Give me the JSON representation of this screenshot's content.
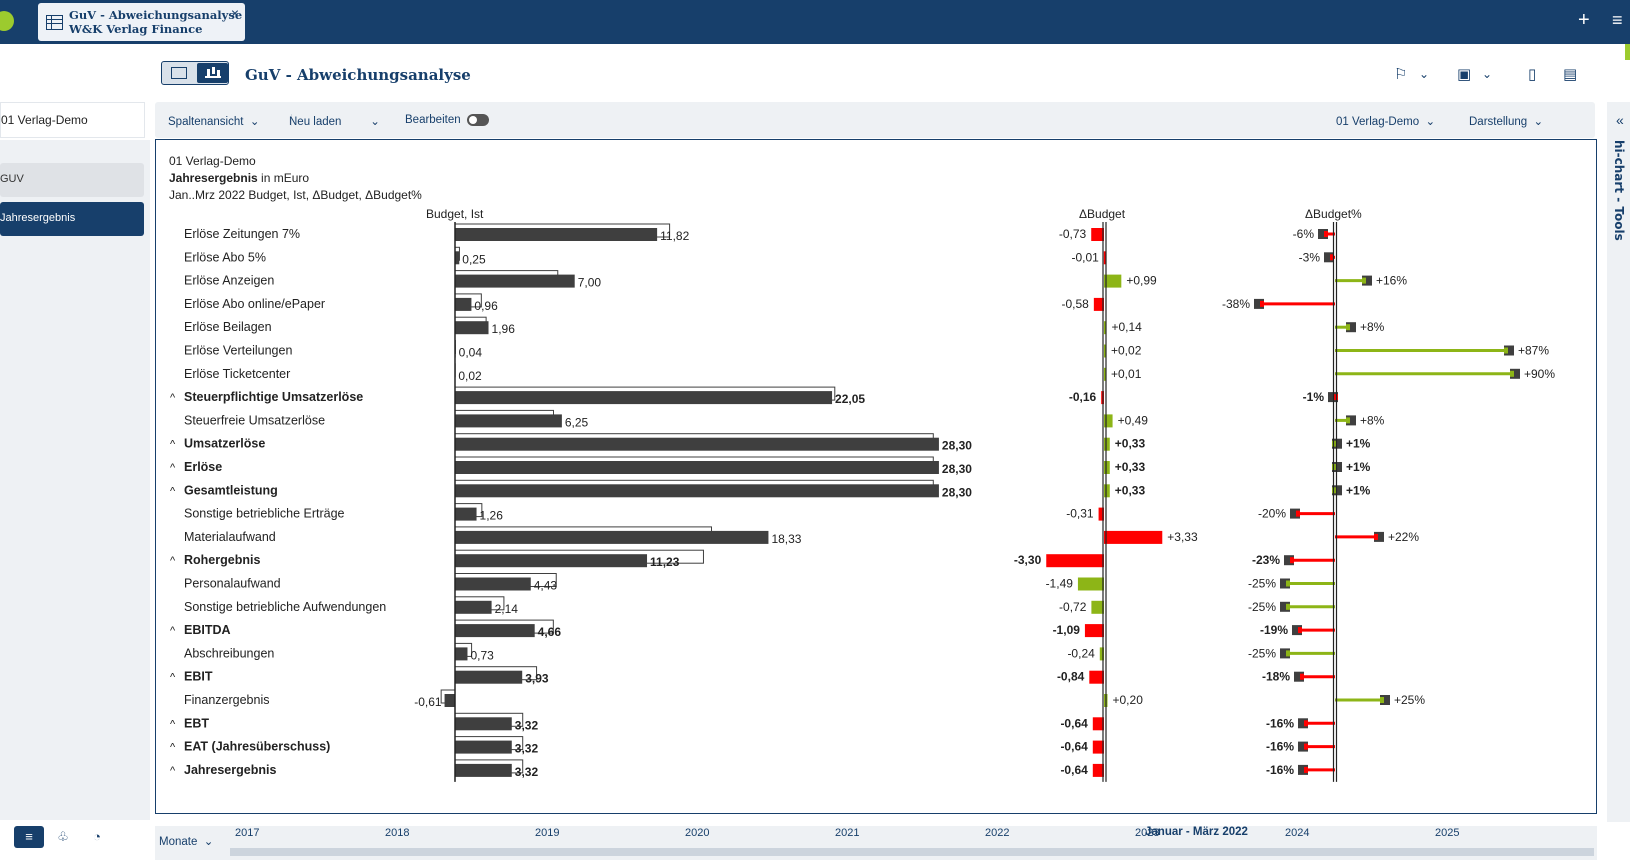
{
  "window": {
    "tab_line1": "GuV - Abweichungsanalyse",
    "tab_line2": "W&K Verlag Finance",
    "tab_close": "×",
    "plus": "+",
    "menu": "≡"
  },
  "header": {
    "title": "GuV - Abweichungsanalyse"
  },
  "left": {
    "entity": "01 Verlag-Demo",
    "nav": [
      {
        "label": "GUV",
        "active": false
      },
      {
        "label": "Jahresergebnis",
        "active": true
      }
    ]
  },
  "toolbar": {
    "spaltenansicht": "Spaltenansicht",
    "neu_laden": "Neu laden",
    "bearbeiten": "Bearbeiten",
    "entity": "01 Verlag-Demo",
    "darstellung": "Darstellung"
  },
  "right_panel": {
    "label": "hi-chart - Tools"
  },
  "chart_header": {
    "line1": "01 Verlag-Demo",
    "line2_bold": "Jahresergebnis",
    "line2_rest": " in mEuro",
    "line3": "Jan..Mrz 2022 Budget, Ist, ΔBudget, ΔBudget%"
  },
  "timeline": {
    "unit": "Monate",
    "years": [
      "2017",
      "2018",
      "2019",
      "2020",
      "2021",
      "2022",
      "2023",
      "2024",
      "2025"
    ],
    "selection": "Januar - März 2022"
  },
  "chart_data": {
    "type": "bar",
    "column_titles": {
      "budget_ist": "Budget, Ist",
      "delta": "ΔBudget",
      "delta_pct": "ΔBudget%"
    },
    "colors": {
      "ist": "#3f3f3f",
      "positive": "#8db517",
      "negative": "#ff0000"
    },
    "rows": [
      {
        "label": "Erlöse Zeitungen 7%",
        "bold": false,
        "collapsible": false,
        "ist": 11.82,
        "budget": 12.55,
        "ist_label": "11,82",
        "delta": -0.73,
        "delta_label": "-0,73",
        "delta_good": false,
        "pct": -6,
        "pct_label": "-6%",
        "pct_good": false
      },
      {
        "label": "Erlöse Abo 5%",
        "bold": false,
        "collapsible": false,
        "ist": 0.25,
        "budget": 0.26,
        "ist_label": "0,25",
        "delta": -0.01,
        "delta_label": "-0,01",
        "delta_good": false,
        "pct": -3,
        "pct_label": "-3%",
        "pct_good": false
      },
      {
        "label": "Erlöse Anzeigen",
        "bold": false,
        "collapsible": false,
        "ist": 7.0,
        "budget": 6.01,
        "ist_label": "7,00",
        "delta": 0.99,
        "delta_label": "+0,99",
        "delta_good": true,
        "pct": 16,
        "pct_label": "+16%",
        "pct_good": true
      },
      {
        "label": "Erlöse Abo online/ePaper",
        "bold": false,
        "collapsible": false,
        "ist": 0.96,
        "budget": 1.54,
        "ist_label": "0,96",
        "delta": -0.58,
        "delta_label": "-0,58",
        "delta_good": false,
        "pct": -38,
        "pct_label": "-38%",
        "pct_good": false
      },
      {
        "label": "Erlöse Beilagen",
        "bold": false,
        "collapsible": false,
        "ist": 1.96,
        "budget": 1.82,
        "ist_label": "1,96",
        "delta": 0.14,
        "delta_label": "+0,14",
        "delta_good": true,
        "pct": 8,
        "pct_label": "+8%",
        "pct_good": true
      },
      {
        "label": "Erlöse Verteilungen",
        "bold": false,
        "collapsible": false,
        "ist": 0.04,
        "budget": 0.02,
        "ist_label": "0,04",
        "delta": 0.02,
        "delta_label": "+0,02",
        "delta_good": true,
        "pct": 87,
        "pct_label": "+87%",
        "pct_good": true
      },
      {
        "label": "Erlöse Ticketcenter",
        "bold": false,
        "collapsible": false,
        "ist": 0.02,
        "budget": 0.01,
        "ist_label": "0,02",
        "delta": 0.01,
        "delta_label": "+0,01",
        "delta_good": true,
        "pct": 90,
        "pct_label": "+90%",
        "pct_good": true
      },
      {
        "label": "Steuerpflichtige Umsatzerlöse",
        "bold": true,
        "collapsible": true,
        "ist": 22.05,
        "budget": 22.21,
        "ist_label": "22,05",
        "delta": -0.16,
        "delta_label": "-0,16",
        "delta_good": false,
        "pct": -1,
        "pct_label": "-1%",
        "pct_good": false
      },
      {
        "label": "Steuerfreie Umsatzerlöse",
        "bold": false,
        "collapsible": false,
        "ist": 6.25,
        "budget": 5.76,
        "ist_label": "6,25",
        "delta": 0.49,
        "delta_label": "+0,49",
        "delta_good": true,
        "pct": 8,
        "pct_label": "+8%",
        "pct_good": true
      },
      {
        "label": "Umsatzerlöse",
        "bold": true,
        "collapsible": true,
        "ist": 28.3,
        "budget": 27.97,
        "ist_label": "28,30",
        "delta": 0.33,
        "delta_label": "+0,33",
        "delta_good": true,
        "pct": 1,
        "pct_label": "+1%",
        "pct_good": true
      },
      {
        "label": "Erlöse",
        "bold": true,
        "collapsible": true,
        "ist": 28.3,
        "budget": 27.97,
        "ist_label": "28,30",
        "delta": 0.33,
        "delta_label": "+0,33",
        "delta_good": true,
        "pct": 1,
        "pct_label": "+1%",
        "pct_good": true
      },
      {
        "label": "Gesamtleistung",
        "bold": true,
        "collapsible": true,
        "ist": 28.3,
        "budget": 27.97,
        "ist_label": "28,30",
        "delta": 0.33,
        "delta_label": "+0,33",
        "delta_good": true,
        "pct": 1,
        "pct_label": "+1%",
        "pct_good": true
      },
      {
        "label": "Sonstige betriebliche Erträge",
        "bold": false,
        "collapsible": false,
        "ist": 1.26,
        "budget": 1.57,
        "ist_label": "1,26",
        "delta": -0.31,
        "delta_label": "-0,31",
        "delta_good": false,
        "pct": -20,
        "pct_label": "-20%",
        "pct_good": false
      },
      {
        "label": "Materialaufwand",
        "bold": false,
        "collapsible": false,
        "ist": 18.33,
        "budget": 15.0,
        "ist_label": "18,33",
        "delta": 3.33,
        "delta_label": "+3,33",
        "delta_good": false,
        "pct": 22,
        "pct_label": "+22%",
        "pct_good": false
      },
      {
        "label": "Rohergebnis",
        "bold": true,
        "collapsible": true,
        "ist": 11.23,
        "budget": 14.53,
        "ist_label": "11,23",
        "delta": -3.3,
        "delta_label": "-3,30",
        "delta_good": false,
        "pct": -23,
        "pct_label": "-23%",
        "pct_good": false
      },
      {
        "label": "Personalaufwand",
        "bold": false,
        "collapsible": false,
        "ist": 4.43,
        "budget": 5.92,
        "ist_label": "4,43",
        "delta": -1.49,
        "delta_label": "-1,49",
        "delta_good": true,
        "pct": -25,
        "pct_label": "-25%",
        "pct_good": true
      },
      {
        "label": "Sonstige betriebliche Aufwendungen",
        "bold": false,
        "collapsible": false,
        "ist": 2.14,
        "budget": 2.86,
        "ist_label": "2,14",
        "delta": -0.72,
        "delta_label": "-0,72",
        "delta_good": true,
        "pct": -25,
        "pct_label": "-25%",
        "pct_good": true
      },
      {
        "label": "EBITDA",
        "bold": true,
        "collapsible": true,
        "ist": 4.66,
        "budget": 5.75,
        "ist_label": "4,66",
        "delta": -1.09,
        "delta_label": "-1,09",
        "delta_good": false,
        "pct": -19,
        "pct_label": "-19%",
        "pct_good": false
      },
      {
        "label": "Abschreibungen",
        "bold": false,
        "collapsible": false,
        "ist": 0.73,
        "budget": 0.97,
        "ist_label": "0,73",
        "delta": -0.24,
        "delta_label": "-0,24",
        "delta_good": true,
        "pct": -25,
        "pct_label": "-25%",
        "pct_good": true
      },
      {
        "label": "EBIT",
        "bold": true,
        "collapsible": true,
        "ist": 3.93,
        "budget": 4.77,
        "ist_label": "3,93",
        "delta": -0.84,
        "delta_label": "-0,84",
        "delta_good": false,
        "pct": -18,
        "pct_label": "-18%",
        "pct_good": false
      },
      {
        "label": "Finanzergebnis",
        "bold": false,
        "collapsible": false,
        "ist": -0.61,
        "budget": -0.81,
        "ist_label": "-0,61",
        "delta": 0.2,
        "delta_label": "+0,20",
        "delta_good": true,
        "pct": 25,
        "pct_label": "+25%",
        "pct_good": true
      },
      {
        "label": "EBT",
        "bold": true,
        "collapsible": true,
        "ist": 3.32,
        "budget": 3.96,
        "ist_label": "3,32",
        "delta": -0.64,
        "delta_label": "-0,64",
        "delta_good": false,
        "pct": -16,
        "pct_label": "-16%",
        "pct_good": false
      },
      {
        "label": "EAT (Jahresüberschuss)",
        "bold": true,
        "collapsible": true,
        "ist": 3.32,
        "budget": 3.96,
        "ist_label": "3,32",
        "delta": -0.64,
        "delta_label": "-0,64",
        "delta_good": false,
        "pct": -16,
        "pct_label": "-16%",
        "pct_good": false
      },
      {
        "label": "Jahresergebnis",
        "bold": true,
        "collapsible": true,
        "ist": 3.32,
        "budget": 3.96,
        "ist_label": "3,32",
        "delta": -0.64,
        "delta_label": "-0,64",
        "delta_good": false,
        "pct": -16,
        "pct_label": "-16%",
        "pct_good": false
      }
    ]
  }
}
